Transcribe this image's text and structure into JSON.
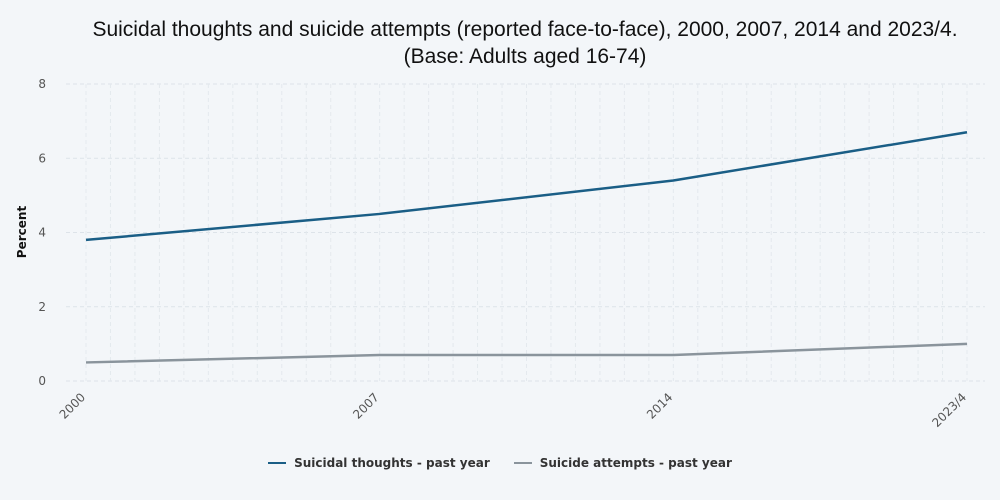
{
  "chart_data": {
    "type": "line",
    "title": "Suicidal thoughts and suicide attempts (reported face-to-face), 2000, 2007, 2014 and 2023/4. (Base: Adults aged 16-74)",
    "ylabel": "Percent",
    "xlabel": "",
    "categories": [
      "2000",
      "2007",
      "2014",
      "2023/4"
    ],
    "ylim": [
      0,
      8
    ],
    "yticks": [
      0,
      2,
      4,
      6,
      8
    ],
    "grid": true,
    "legend": "bottom-center",
    "series": [
      {
        "name": "Suicidal thoughts - past year",
        "color": "#1a5e86",
        "values": [
          3.8,
          4.5,
          5.4,
          6.7
        ]
      },
      {
        "name": "Suicide attempts - past year",
        "color": "#8a949c",
        "values": [
          0.5,
          0.7,
          0.7,
          1.0
        ]
      }
    ]
  }
}
